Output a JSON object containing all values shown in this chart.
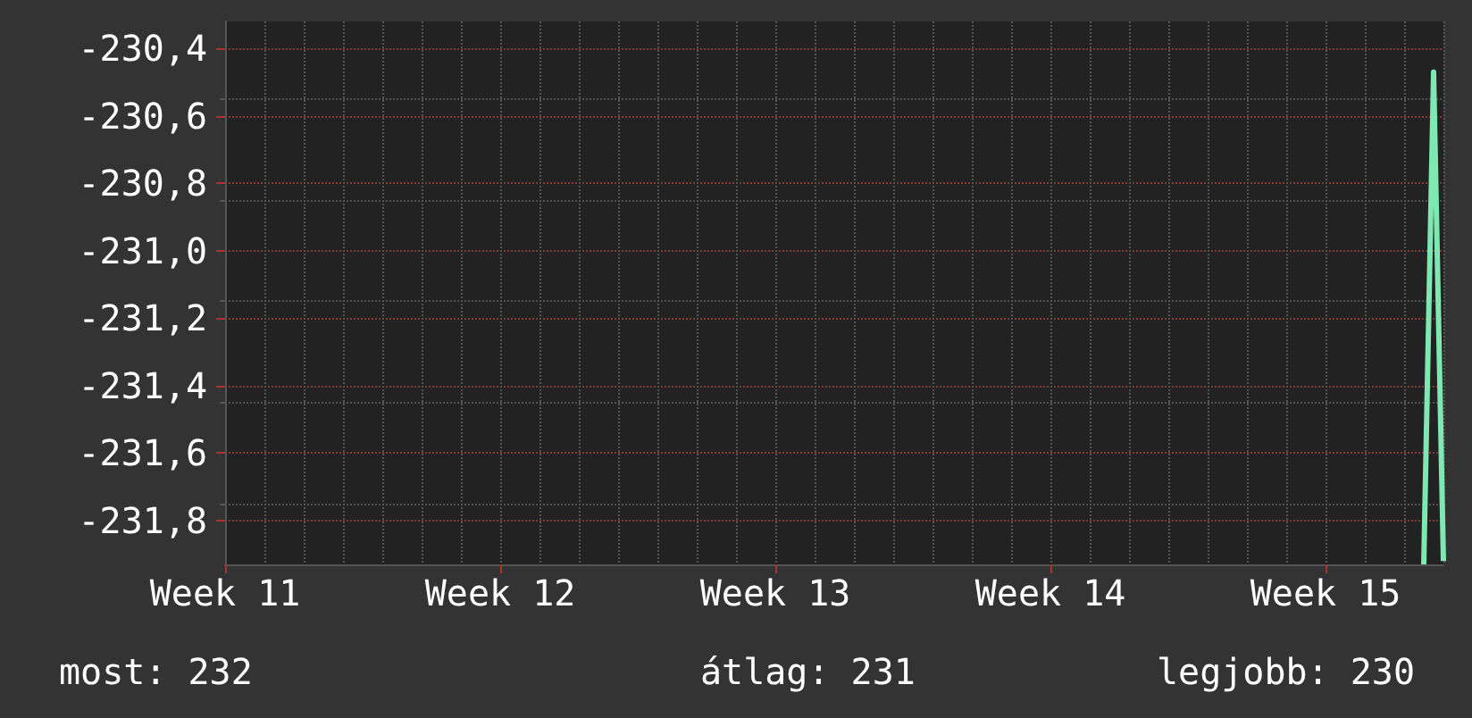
{
  "chart_data": {
    "type": "line",
    "categories": [
      "Week 11",
      null,
      null,
      null,
      null,
      null,
      null,
      null,
      null,
      null,
      null,
      null,
      null,
      null,
      null,
      null,
      null,
      null,
      null,
      null,
      null,
      null,
      null,
      null,
      null,
      null,
      null,
      null,
      "Week 12",
      null,
      null,
      null,
      null,
      null,
      null,
      null,
      null,
      null,
      null,
      null,
      null,
      null,
      null,
      null,
      null,
      null,
      null,
      null,
      null,
      null,
      null,
      null,
      null,
      null,
      null,
      null,
      "Week 13",
      null,
      null,
      null,
      null,
      null,
      null,
      null,
      null,
      null,
      null,
      null,
      null,
      null,
      null,
      null,
      null,
      null,
      null,
      null,
      null,
      null,
      null,
      null,
      null,
      null,
      null,
      null,
      "Week 14",
      null,
      null,
      null,
      null,
      null,
      null,
      null,
      null,
      null,
      null,
      null,
      null,
      null,
      null,
      null,
      null,
      null,
      null,
      null,
      null,
      null,
      null,
      null,
      null,
      null,
      null,
      null,
      "Week 15",
      null,
      null,
      null,
      null,
      null,
      null,
      null,
      null,
      null,
      null,
      null,
      null
    ],
    "series": [
      {
        "color": "#7fe8b2",
        "values": [
          null,
          null,
          null,
          null,
          null,
          null,
          null,
          null,
          null,
          null,
          null,
          null,
          null,
          null,
          null,
          null,
          null,
          null,
          null,
          null,
          null,
          null,
          null,
          null,
          null,
          null,
          null,
          null,
          null,
          null,
          null,
          null,
          null,
          null,
          null,
          null,
          null,
          null,
          null,
          null,
          null,
          null,
          null,
          null,
          null,
          null,
          null,
          null,
          null,
          null,
          null,
          null,
          null,
          null,
          null,
          null,
          null,
          null,
          null,
          null,
          null,
          null,
          null,
          null,
          null,
          null,
          null,
          null,
          null,
          null,
          null,
          null,
          null,
          null,
          null,
          null,
          null,
          null,
          null,
          null,
          null,
          null,
          null,
          null,
          null,
          null,
          null,
          null,
          null,
          null,
          null,
          null,
          null,
          null,
          null,
          null,
          null,
          null,
          null,
          null,
          null,
          null,
          null,
          null,
          null,
          null,
          null,
          null,
          null,
          null,
          null,
          null,
          null,
          null,
          null,
          null,
          null,
          null,
          null,
          null,
          null,
          null,
          -231.93,
          -230.47,
          -231.92
        ]
      }
    ],
    "ylim": [
      -231.93,
      -230.32
    ],
    "yticks": [
      {
        "value": -231.8,
        "label": "-231,8"
      },
      {
        "value": -231.6,
        "label": "-231,6"
      },
      {
        "value": -231.4,
        "label": "-231,4"
      },
      {
        "value": -231.2,
        "label": "-231,2"
      },
      {
        "value": -231.0,
        "label": "-231,0"
      },
      {
        "value": -230.8,
        "label": "-230,8"
      },
      {
        "value": -230.6,
        "label": "-230,6"
      },
      {
        "value": -230.4,
        "label": "-230,4"
      }
    ],
    "grid": true,
    "marker": "none",
    "line_style": "solid",
    "annotations": [
      "most: 232",
      "átlag: 231",
      "legjobb: 230"
    ]
  }
}
